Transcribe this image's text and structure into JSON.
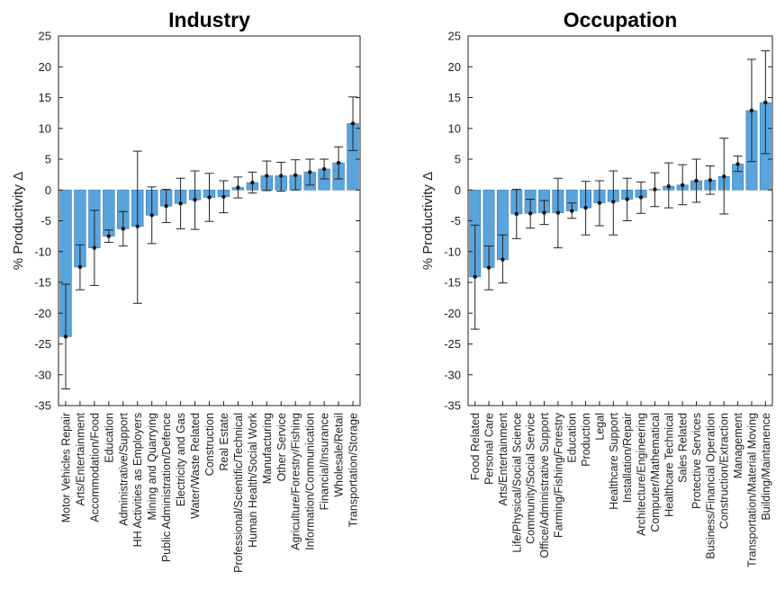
{
  "chart_data": [
    {
      "type": "bar",
      "title": "Industry",
      "ylabel": "% Productivity Δ",
      "xlabel": "",
      "ylim": [
        -35,
        25
      ],
      "yticks": [
        -35,
        -30,
        -25,
        -20,
        -15,
        -10,
        -5,
        0,
        5,
        10,
        15,
        20,
        25
      ],
      "grid": false,
      "bar_color": "#5aa4dc",
      "categories": [
        "Motor Vehicles Repair",
        "Arts/Entertainment",
        "Accommodation/Food",
        "Education",
        "Administrative/Support",
        "HH Activities as Employers",
        "Mining and Quarrying",
        "Public Administration/Defence",
        "Electricity and Gas",
        "Water/Waste Related",
        "Construction",
        "Real Estate",
        "Professional/Scientific/Technical",
        "Human Health/Social Work",
        "Manufacturing",
        "Other Service",
        "Agriculture/Forestry/Fishing",
        "Information/Communication",
        "Financial/Insurance",
        "Wholesale/Retail",
        "Transportation/Storage"
      ],
      "values": [
        -23.8,
        -12.5,
        -9.4,
        -7.5,
        -6.3,
        -5.9,
        -4.1,
        -2.6,
        -2.2,
        -1.6,
        -1.2,
        -1.1,
        0.4,
        1.2,
        2.3,
        2.3,
        2.4,
        2.9,
        3.4,
        4.4,
        10.8
      ],
      "err_low": [
        -32.3,
        -16.2,
        -15.5,
        -8.5,
        -9.1,
        -18.4,
        -8.7,
        -5.3,
        -6.3,
        -6.4,
        -5.1,
        -3.7,
        -1.3,
        -0.5,
        -0.1,
        -0.2,
        0.0,
        0.8,
        1.8,
        1.8,
        6.4
      ],
      "err_high": [
        -15.3,
        -8.9,
        -3.3,
        -6.5,
        -3.5,
        6.3,
        0.5,
        0.1,
        1.9,
        3.1,
        2.7,
        1.5,
        2.1,
        2.9,
        4.7,
        4.5,
        4.9,
        5.0,
        5.0,
        7.0,
        15.1
      ]
    },
    {
      "type": "bar",
      "title": "Occupation",
      "ylabel": "% Productivity Δ",
      "xlabel": "",
      "ylim": [
        -35,
        25
      ],
      "yticks": [
        -35,
        -30,
        -25,
        -20,
        -15,
        -10,
        -5,
        0,
        5,
        10,
        15,
        20,
        25
      ],
      "grid": false,
      "bar_color": "#5aa4dc",
      "categories": [
        "Food Related",
        "Personal Care",
        "Arts/Entertainment",
        "Life/Physical/Social Science",
        "Community/Social Service",
        "Office/Administrative Support",
        "Farming/Fishing/Forestry",
        "Education",
        "Production",
        "Legal",
        "Healthcare Support",
        "Installation/Repair",
        "Architecture/Engineering",
        "Computer/Mathematical",
        "Healthcare Technical",
        "Sales Related",
        "Protective Services",
        "Business/Financial Operation",
        "Construction/Extraction",
        "Management",
        "Transportation/Material Moving",
        "Building/Maintanence"
      ],
      "values": [
        -14.1,
        -12.6,
        -11.3,
        -3.9,
        -3.8,
        -3.7,
        -3.7,
        -3.4,
        -2.9,
        -2.1,
        -1.9,
        -1.5,
        -1.2,
        0.1,
        0.6,
        0.8,
        1.5,
        1.6,
        2.2,
        4.2,
        12.9,
        14.2
      ],
      "err_low": [
        -22.6,
        -16.2,
        -15.1,
        -7.9,
        -6.2,
        -5.6,
        -9.4,
        -4.6,
        -7.3,
        -5.8,
        -7.3,
        -5.0,
        -3.8,
        -2.7,
        -2.9,
        -2.4,
        -2.0,
        -0.7,
        -3.9,
        3.0,
        4.6,
        5.9
      ],
      "err_high": [
        -5.7,
        -9.1,
        -7.3,
        0.1,
        -1.5,
        -1.7,
        1.9,
        -2.1,
        1.4,
        1.5,
        3.1,
        1.9,
        1.3,
        2.8,
        4.4,
        4.1,
        5.0,
        3.9,
        8.4,
        5.5,
        21.2,
        22.6
      ]
    }
  ]
}
